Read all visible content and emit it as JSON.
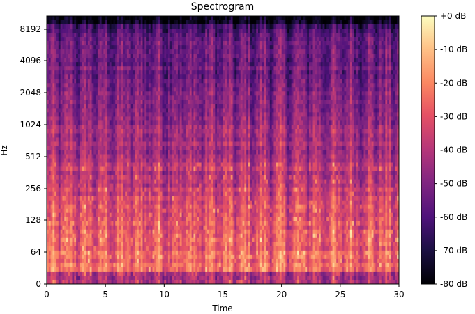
{
  "chart_data": {
    "type": "heatmap",
    "title": "Spectrogram",
    "xlabel": "Time",
    "ylabel": "Hz",
    "xlim": [
      0,
      30
    ],
    "x_ticks": [
      0,
      5,
      10,
      15,
      20,
      25,
      30
    ],
    "y_scale": "log2-symmetric",
    "y_ticks": [
      "0",
      "64",
      "128",
      "256",
      "512",
      "1024",
      "2048",
      "4096",
      "8192"
    ],
    "colormap": "magma",
    "colorbar": {
      "position": "right",
      "ticks": [
        "+0 dB",
        "-10 dB",
        "-20 dB",
        "-30 dB",
        "-40 dB",
        "-50 dB",
        "-60 dB",
        "-70 dB",
        "-80 dB"
      ],
      "range_db": [
        -80,
        0
      ]
    },
    "grid": false
  }
}
